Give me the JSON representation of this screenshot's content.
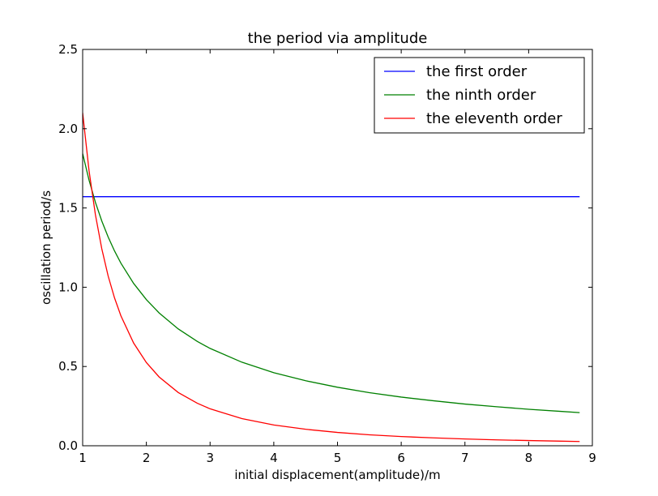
{
  "chart_data": {
    "type": "line",
    "title": "the period via amplitude",
    "xlabel": "initial displacement(amplitude)/m",
    "ylabel": "oscillation period/s",
    "xlim": [
      1,
      9
    ],
    "ylim": [
      0,
      2.5
    ],
    "xticks": [
      "1",
      "2",
      "3",
      "4",
      "5",
      "6",
      "7",
      "8",
      "9"
    ],
    "yticks": [
      "0.0",
      "0.5",
      "1.0",
      "1.5",
      "2.0",
      "2.5"
    ],
    "grid": false,
    "legend_position": "top-right",
    "series": [
      {
        "name": "the first order",
        "color": "#0000ff",
        "x": [
          1.0,
          8.8
        ],
        "y": [
          1.571,
          1.571
        ]
      },
      {
        "name": "the ninth order",
        "color": "#008000",
        "x": [
          1.0,
          1.1,
          1.2,
          1.3,
          1.4,
          1.5,
          1.6,
          1.8,
          2.0,
          2.2,
          2.5,
          2.8,
          3.0,
          3.5,
          4.0,
          4.5,
          5.0,
          5.5,
          6.0,
          6.5,
          7.0,
          7.5,
          8.0,
          8.5,
          8.8
        ],
        "y": [
          1.843,
          1.676,
          1.536,
          1.418,
          1.317,
          1.229,
          1.152,
          1.024,
          0.922,
          0.838,
          0.737,
          0.658,
          0.614,
          0.527,
          0.461,
          0.41,
          0.369,
          0.335,
          0.307,
          0.284,
          0.263,
          0.246,
          0.23,
          0.217,
          0.209
        ]
      },
      {
        "name": "the eleventh order",
        "color": "#ff0000",
        "x": [
          1.0,
          1.1,
          1.2,
          1.3,
          1.4,
          1.5,
          1.6,
          1.8,
          2.0,
          2.2,
          2.5,
          2.8,
          3.0,
          3.5,
          4.0,
          4.5,
          5.0,
          5.5,
          6.0,
          6.5,
          7.0,
          7.5,
          8.0,
          8.5,
          8.8
        ],
        "y": [
          2.1,
          1.736,
          1.458,
          1.243,
          1.071,
          0.933,
          0.82,
          0.648,
          0.525,
          0.434,
          0.336,
          0.268,
          0.233,
          0.171,
          0.131,
          0.104,
          0.084,
          0.069,
          0.058,
          0.05,
          0.043,
          0.037,
          0.033,
          0.029,
          0.027
        ]
      }
    ]
  }
}
